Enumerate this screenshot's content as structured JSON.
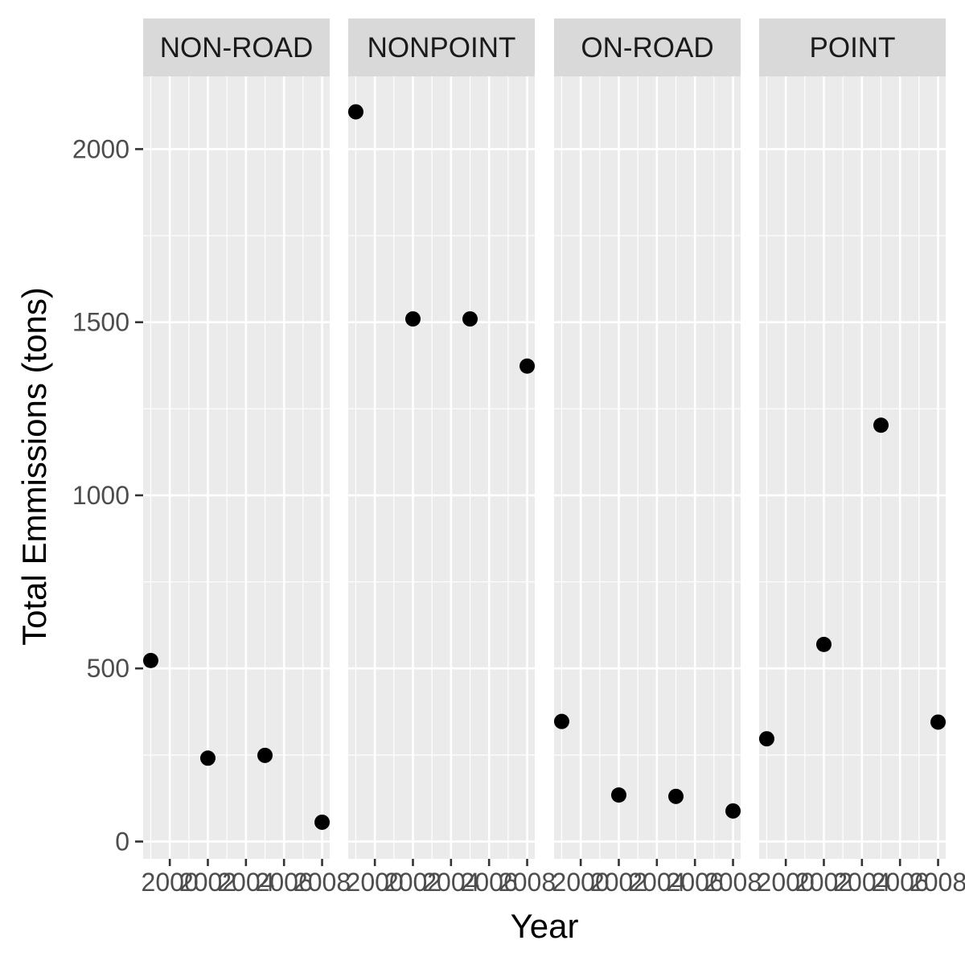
{
  "chart_data": {
    "type": "scatter",
    "facet_by": "type",
    "xlabel": "Year",
    "ylabel": "Total Emmissions (tons)",
    "xlim": [
      1998.6,
      2008.4
    ],
    "ylim": [
      -50,
      2210
    ],
    "x_ticks": [
      2000,
      2002,
      2004,
      2006,
      2008
    ],
    "y_ticks": [
      0,
      500,
      1000,
      1500,
      2000
    ],
    "grid": true,
    "legend": "none",
    "point_color": "#000000",
    "panel_background": "#ebebeb",
    "strip_background": "#d9d9d9",
    "facets": [
      {
        "label": "NON-ROAD",
        "points": [
          {
            "x": 1999,
            "y": 522.9
          },
          {
            "x": 2002,
            "y": 240.8
          },
          {
            "x": 2005,
            "y": 248.9
          },
          {
            "x": 2008,
            "y": 55.8
          }
        ]
      },
      {
        "label": "NONPOINT",
        "points": [
          {
            "x": 1999,
            "y": 2107.6
          },
          {
            "x": 2002,
            "y": 1509.5
          },
          {
            "x": 2005,
            "y": 1509.5
          },
          {
            "x": 2008,
            "y": 1373.2
          }
        ]
      },
      {
        "label": "ON-ROAD",
        "points": [
          {
            "x": 1999,
            "y": 346.8
          },
          {
            "x": 2002,
            "y": 134.3
          },
          {
            "x": 2005,
            "y": 130.4
          },
          {
            "x": 2008,
            "y": 88.3
          }
        ]
      },
      {
        "label": "POINT",
        "points": [
          {
            "x": 1999,
            "y": 296.8
          },
          {
            "x": 2002,
            "y": 569.3
          },
          {
            "x": 2005,
            "y": 1202.5
          },
          {
            "x": 2008,
            "y": 344.98
          }
        ]
      }
    ]
  }
}
